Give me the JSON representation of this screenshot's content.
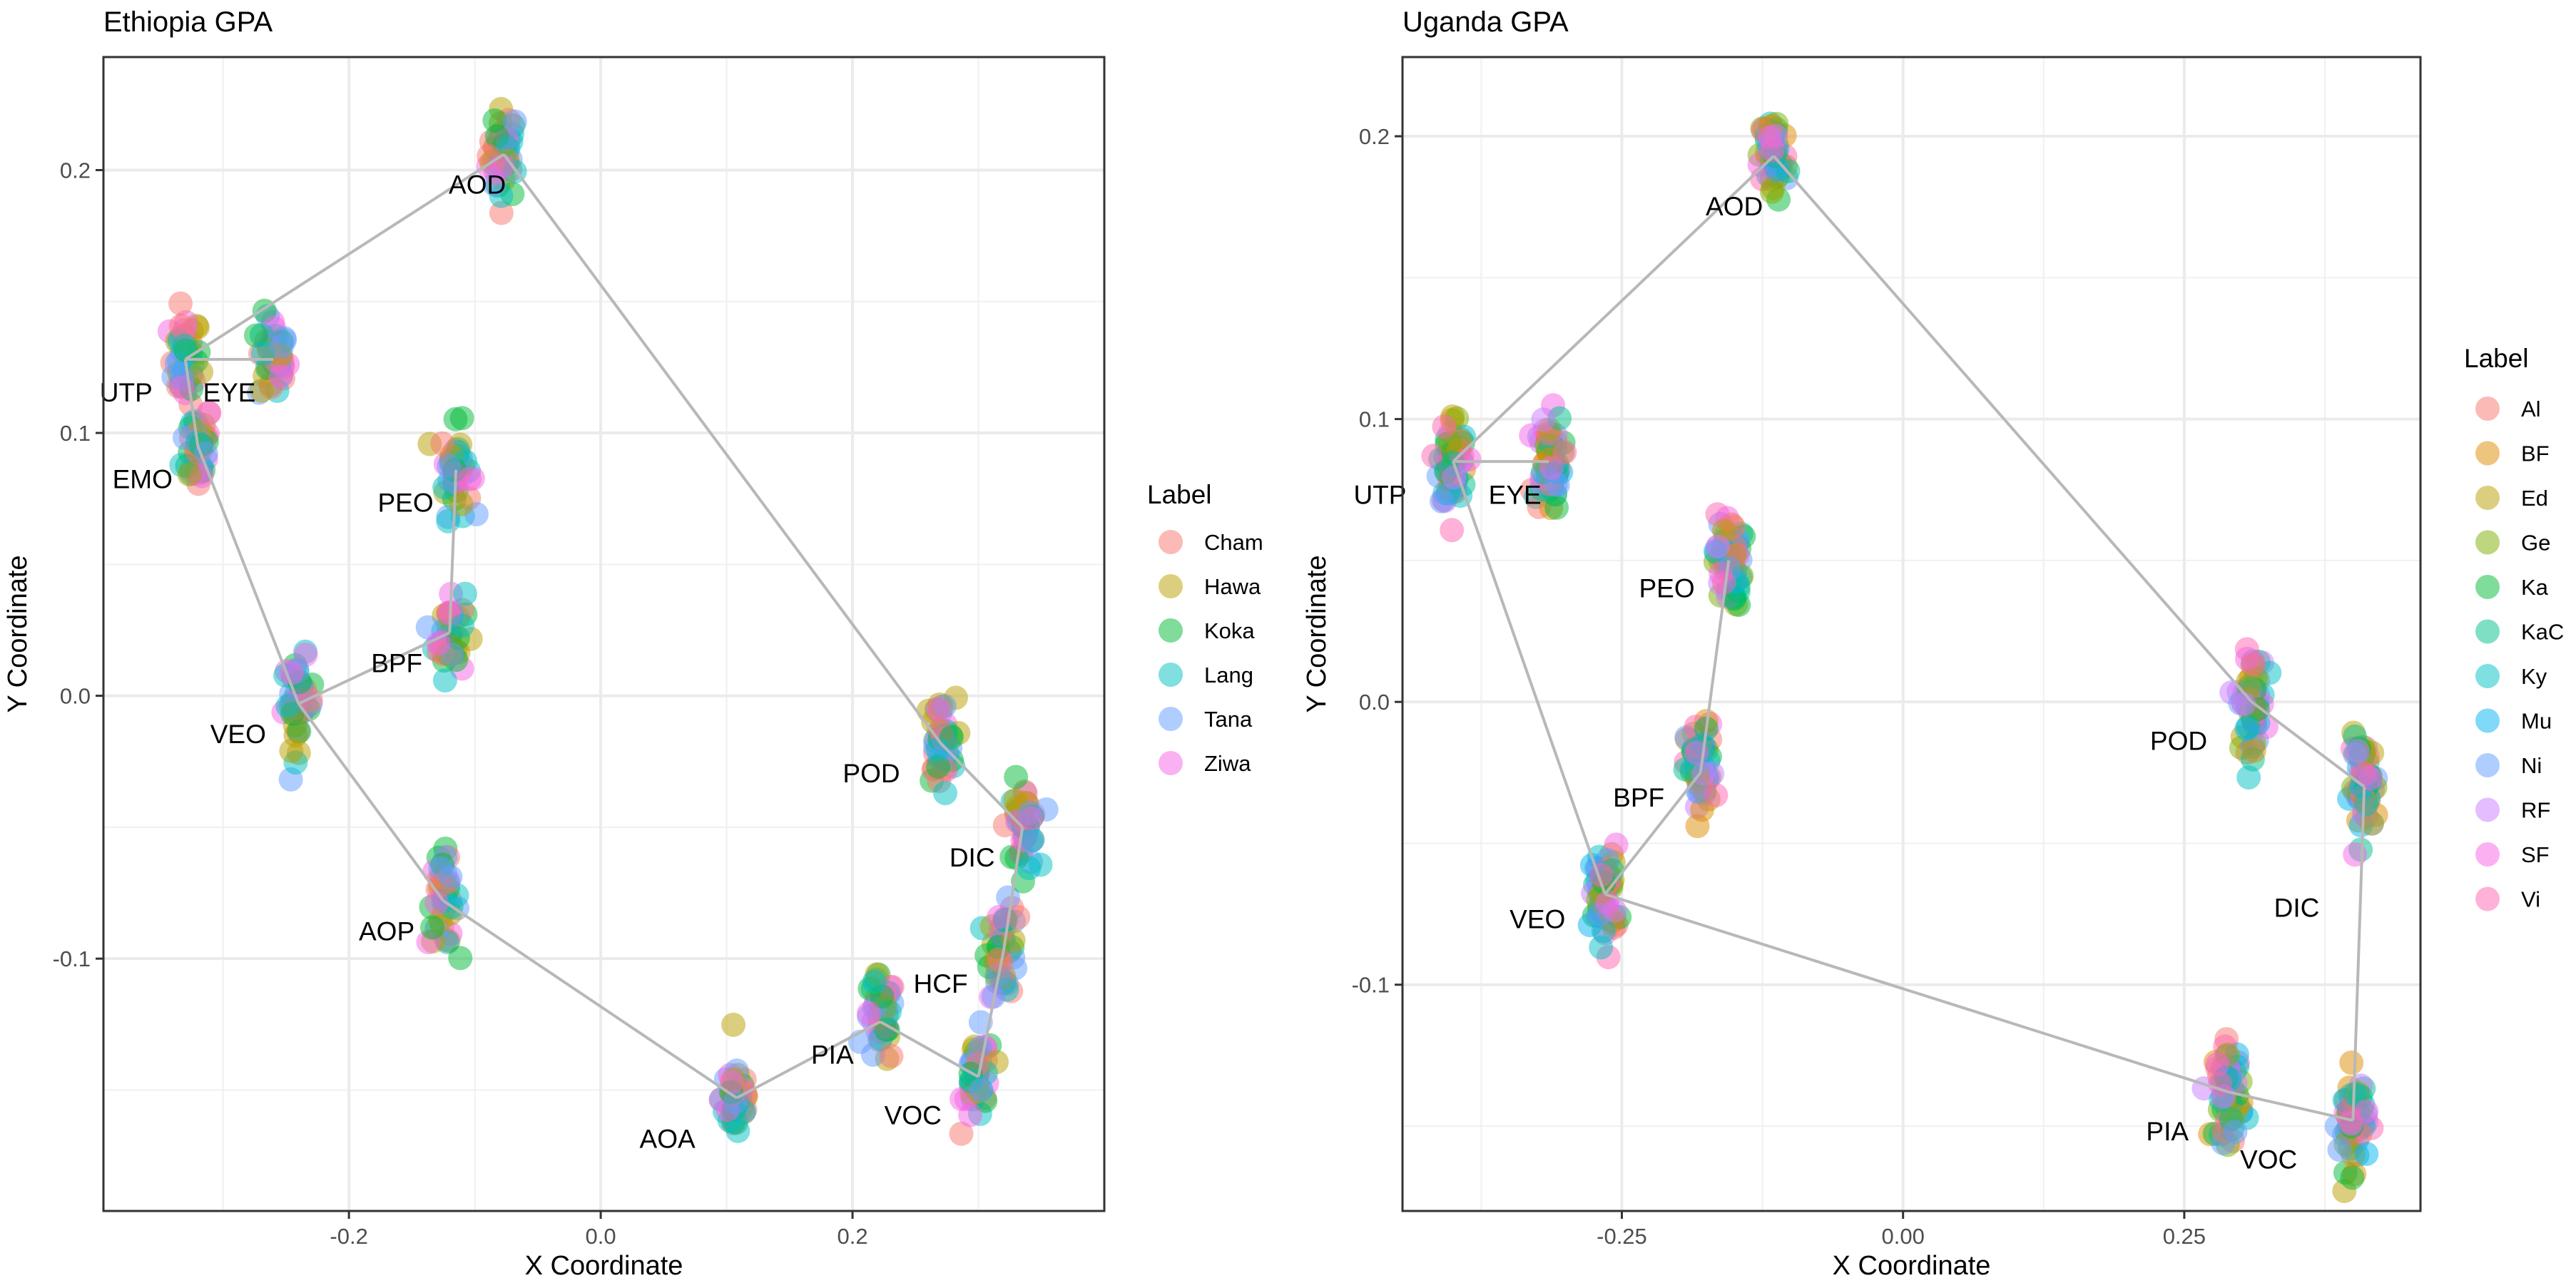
{
  "chart_data": [
    {
      "type": "scatter",
      "title": "Ethiopia GPA",
      "xlabel": "X Coordinate",
      "ylabel": "Y Coordinate",
      "xlim": [
        -0.395,
        0.4
      ],
      "ylim": [
        -0.196,
        0.243
      ],
      "xticks": [
        -0.2,
        0.0,
        0.2
      ],
      "xtick_labels": [
        "-0.2",
        "0.0",
        "0.2"
      ],
      "xminor": [
        -0.3,
        -0.1,
        0.1,
        0.3
      ],
      "yticks": [
        -0.1,
        0.0,
        0.1,
        0.2
      ],
      "ytick_labels": [
        "-0.1",
        "0.0",
        "0.1",
        "0.2"
      ],
      "yminor": [
        -0.15,
        -0.05,
        0.05,
        0.15
      ],
      "grid": true,
      "legend_title": "Label",
      "legend": [
        {
          "name": "Cham",
          "color": "#F8766D"
        },
        {
          "name": "Hawa",
          "color": "#B79F00"
        },
        {
          "name": "Koka",
          "color": "#00BA38"
        },
        {
          "name": "Lang",
          "color": "#00BFC4"
        },
        {
          "name": "Tana",
          "color": "#619CFF"
        },
        {
          "name": "Ziwa",
          "color": "#F564E3"
        }
      ],
      "landmarks": [
        {
          "name": "AOD",
          "x": -0.077,
          "y": 0.206
        },
        {
          "name": "UTP",
          "x": -0.33,
          "y": 0.128
        },
        {
          "name": "EYE",
          "x": -0.26,
          "y": 0.128
        },
        {
          "name": "EMO",
          "x": -0.32,
          "y": 0.095
        },
        {
          "name": "PEO",
          "x": -0.115,
          "y": 0.086
        },
        {
          "name": "BPF",
          "x": -0.12,
          "y": 0.024
        },
        {
          "name": "VEO",
          "x": -0.24,
          "y": -0.003
        },
        {
          "name": "AOP",
          "x": -0.125,
          "y": -0.078
        },
        {
          "name": "AOA",
          "x": 0.108,
          "y": -0.153
        },
        {
          "name": "PIA",
          "x": 0.222,
          "y": -0.124
        },
        {
          "name": "VOC",
          "x": 0.3,
          "y": -0.145
        },
        {
          "name": "HCF",
          "x": 0.32,
          "y": -0.097
        },
        {
          "name": "DIC",
          "x": 0.335,
          "y": -0.05
        },
        {
          "name": "POD",
          "x": 0.27,
          "y": -0.018
        }
      ],
      "outline": [
        "AOD",
        "UTP",
        "EMO",
        "VEO",
        "AOP",
        "AOA",
        "PIA",
        "VOC",
        "HCF",
        "DIC",
        "POD",
        "AOD"
      ],
      "extra_links": [
        [
          "UTP",
          "EYE"
        ],
        [
          "VEO",
          "BPF"
        ],
        [
          "BPF",
          "PEO"
        ]
      ]
    },
    {
      "type": "scatter",
      "title": "Uganda GPA",
      "xlabel": "X Coordinate",
      "ylabel": "Y Coordinate",
      "xlim": [
        -0.445,
        0.46
      ],
      "ylim": [
        -0.18,
        0.228
      ],
      "xticks": [
        -0.25,
        0.0,
        0.25
      ],
      "xtick_labels": [
        "-0.25",
        "0.00",
        "0.25"
      ],
      "xminor": [
        -0.375,
        -0.125,
        0.125,
        0.375
      ],
      "yticks": [
        -0.1,
        0.0,
        0.1,
        0.2
      ],
      "ytick_labels": [
        "-0.1",
        "0.0",
        "0.1",
        "0.2"
      ],
      "yminor": [
        -0.15,
        -0.05,
        0.05,
        0.15
      ],
      "grid": true,
      "legend_title": "Label",
      "legend": [
        {
          "name": "Al",
          "color": "#F8766D"
        },
        {
          "name": "BF",
          "color": "#DE8C00"
        },
        {
          "name": "Ed",
          "color": "#B79F00"
        },
        {
          "name": "Ge",
          "color": "#7CAE00"
        },
        {
          "name": "Ka",
          "color": "#00BA38"
        },
        {
          "name": "KaC",
          "color": "#00C08B"
        },
        {
          "name": "Ky",
          "color": "#00BFC4"
        },
        {
          "name": "Mu",
          "color": "#00B4F0"
        },
        {
          "name": "Ni",
          "color": "#619CFF"
        },
        {
          "name": "RF",
          "color": "#C77CFF"
        },
        {
          "name": "SF",
          "color": "#F564E3"
        },
        {
          "name": "Vi",
          "color": "#FF64B0"
        }
      ],
      "landmarks": [
        {
          "name": "AOD",
          "x": -0.115,
          "y": 0.193
        },
        {
          "name": "UTP",
          "x": -0.4,
          "y": 0.085
        },
        {
          "name": "EYE",
          "x": -0.315,
          "y": 0.085
        },
        {
          "name": "PEO",
          "x": -0.155,
          "y": 0.05
        },
        {
          "name": "BPF",
          "x": -0.18,
          "y": -0.025
        },
        {
          "name": "VEO",
          "x": -0.265,
          "y": -0.068
        },
        {
          "name": "POD",
          "x": 0.31,
          "y": 0.0
        },
        {
          "name": "DIC",
          "x": 0.41,
          "y": -0.03
        },
        {
          "name": "PIA",
          "x": 0.29,
          "y": -0.138
        },
        {
          "name": "VOC",
          "x": 0.4,
          "y": -0.148
        }
      ],
      "outline": [
        "AOD",
        "UTP",
        "VEO",
        "PIA",
        "VOC",
        "DIC",
        "POD",
        "AOD"
      ],
      "extra_links": [
        [
          "UTP",
          "EYE"
        ],
        [
          "VEO",
          "BPF"
        ],
        [
          "BPF",
          "PEO"
        ]
      ]
    }
  ]
}
